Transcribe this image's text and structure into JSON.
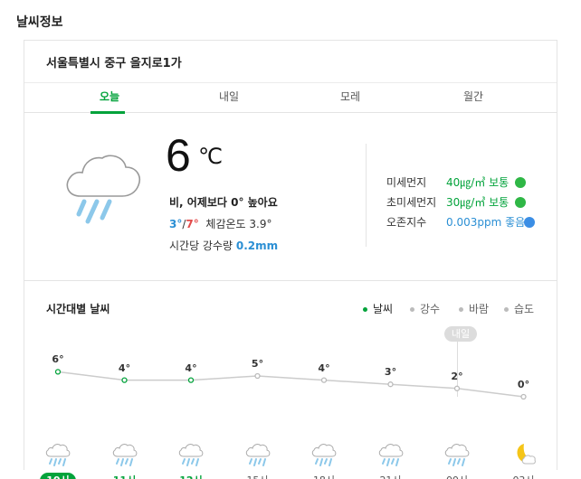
{
  "page_title": "날씨정보",
  "location": "서울특별시 중구 을지로1가",
  "tabs": [
    {
      "label": "오늘"
    },
    {
      "label": "내일"
    },
    {
      "label": "모레"
    },
    {
      "label": "월간"
    }
  ],
  "current": {
    "icon": "rain-cloud-icon",
    "temp": "6",
    "unit": "℃",
    "desc": "비, 어제보다 0° 높아요",
    "min": "3°",
    "slash": "/",
    "max": "7°",
    "feels_label": "체감온도",
    "feels": "3.9°",
    "rain_label": "시간당 강수량",
    "rain": "0.2mm"
  },
  "air": [
    {
      "label": "미세먼지",
      "value": "40㎍/㎥ 보통",
      "status": "normal",
      "color": "#03a33b"
    },
    {
      "label": "초미세먼지",
      "value": "30㎍/㎥ 보통",
      "status": "normal",
      "color": "#03a33b"
    },
    {
      "label": "오존지수",
      "value": "0.003ppm 좋음",
      "status": "good",
      "color": "#2b8fd4"
    }
  ],
  "hourly": {
    "title": "시간대별 날씨",
    "legend": [
      {
        "label": "날씨",
        "active": true
      },
      {
        "label": "강수",
        "active": false
      },
      {
        "label": "바람",
        "active": false
      },
      {
        "label": "습도",
        "active": false
      }
    ],
    "tomorrow_badge": "내일",
    "items": [
      {
        "time": "10시",
        "temp": "6°",
        "value": 6,
        "icon": "rain-cloud-icon",
        "state": "now"
      },
      {
        "time": "11시",
        "temp": "4°",
        "value": 4,
        "icon": "rain-cloud-icon",
        "state": "today"
      },
      {
        "time": "12시",
        "temp": "4°",
        "value": 4,
        "icon": "rain-cloud-icon",
        "state": "today"
      },
      {
        "time": "15시",
        "temp": "5°",
        "value": 5,
        "icon": "rain-cloud-icon",
        "state": "normal"
      },
      {
        "time": "18시",
        "temp": "4°",
        "value": 4,
        "icon": "rain-cloud-icon",
        "state": "normal"
      },
      {
        "time": "21시",
        "temp": "3°",
        "value": 3,
        "icon": "rain-cloud-icon",
        "state": "normal"
      },
      {
        "time": "00시",
        "temp": "2°",
        "value": 2,
        "icon": "rain-cloud-icon",
        "state": "normal"
      },
      {
        "time": "03시",
        "temp": "0°",
        "value": 0,
        "icon": "moon-cloud-icon",
        "state": "normal"
      }
    ]
  },
  "colors": {
    "accent": "#03a33b",
    "rain": "#2b8fd4",
    "max": "#e24b4b"
  }
}
